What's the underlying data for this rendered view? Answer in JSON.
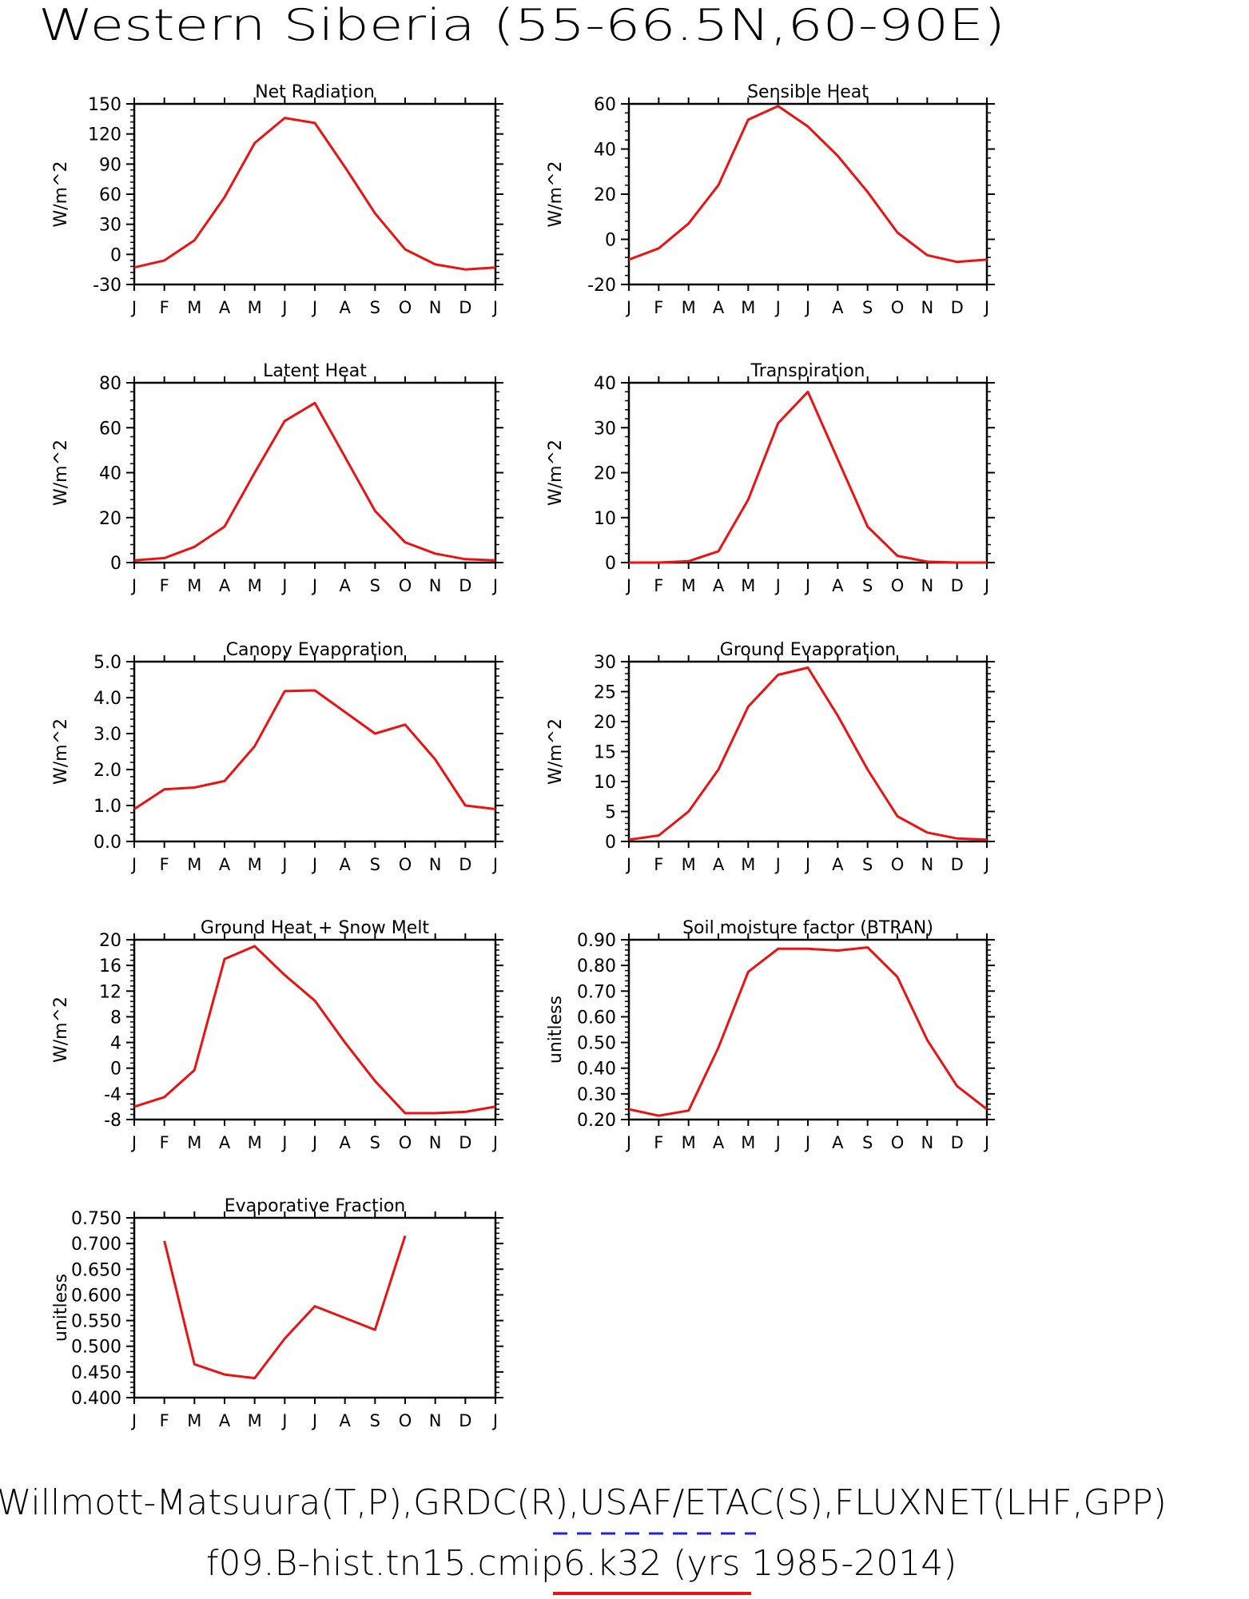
{
  "page_title": "Western Siberia (55-66.5N,60-90E)",
  "footer": {
    "line1": "Willmott-Matsuura(T,P),GRDC(R),USAF/ETAC(S),FLUXNET(LHF,GPP)",
    "line2": "f09.B-hist.tn15.cmip6.k32 (yrs 1985-2014)",
    "obs_line_color": "#2222dd",
    "model_line_color": "#ee1111"
  },
  "months": [
    "J",
    "F",
    "M",
    "A",
    "M",
    "J",
    "J",
    "A",
    "S",
    "O",
    "N",
    "D",
    "J"
  ],
  "chart_data": [
    {
      "type": "line",
      "title": "Net Radiation",
      "ylabel": "W/m^2",
      "ylim": [
        -30,
        150
      ],
      "yticks": [
        "-30",
        "0",
        "30",
        "60",
        "90",
        "120",
        "150"
      ],
      "series": [
        {
          "color": "#ee1111",
          "values": [
            -13,
            -6,
            14,
            57,
            111,
            136,
            131,
            87,
            41,
            5,
            -10,
            -15,
            -13
          ]
        }
      ]
    },
    {
      "type": "line",
      "title": "Sensible Heat",
      "ylabel": "W/m^2",
      "ylim": [
        -20,
        60
      ],
      "yticks": [
        "-20",
        "0",
        "20",
        "40",
        "60"
      ],
      "series": [
        {
          "color": "#ee1111",
          "values": [
            -9,
            -4,
            7,
            24,
            53,
            59,
            50,
            37,
            21,
            3,
            -7,
            -10,
            -9
          ]
        }
      ]
    },
    {
      "type": "line",
      "title": "Latent Heat",
      "ylabel": "W/m^2",
      "ylim": [
        0,
        80
      ],
      "yticks": [
        "0",
        "20",
        "40",
        "60",
        "80"
      ],
      "series": [
        {
          "color": "#ee1111",
          "values": [
            1,
            2,
            7,
            16,
            40,
            63,
            71,
            47,
            23,
            9,
            4,
            1.5,
            1
          ]
        }
      ]
    },
    {
      "type": "line",
      "title": "Transpiration",
      "ylabel": "W/m^2",
      "ylim": [
        0,
        40
      ],
      "yticks": [
        "0",
        "10",
        "20",
        "30",
        "40"
      ],
      "series": [
        {
          "color": "#ee1111",
          "values": [
            0,
            0,
            0.3,
            2.5,
            14,
            31,
            38,
            23,
            8,
            1.5,
            0.2,
            0,
            0
          ]
        }
      ]
    },
    {
      "type": "line",
      "title": "Canopy Evaporation",
      "ylabel": "W/m^2",
      "ylim": [
        0,
        5
      ],
      "yticks": [
        "0.0",
        "1.0",
        "2.0",
        "3.0",
        "4.0",
        "5.0"
      ],
      "series": [
        {
          "color": "#ee1111",
          "values": [
            0.9,
            1.45,
            1.5,
            1.68,
            2.65,
            4.18,
            4.2,
            3.6,
            3.0,
            3.25,
            2.28,
            1.0,
            0.9
          ]
        }
      ]
    },
    {
      "type": "line",
      "title": "Ground Evaporation",
      "ylabel": "W/m^2",
      "ylim": [
        0,
        30
      ],
      "yticks": [
        "0",
        "5",
        "10",
        "15",
        "20",
        "25",
        "30"
      ],
      "series": [
        {
          "color": "#ee1111",
          "values": [
            0.3,
            1,
            5,
            12,
            22.5,
            27.8,
            29,
            21,
            12,
            4.2,
            1.5,
            0.5,
            0.3
          ]
        }
      ]
    },
    {
      "type": "line",
      "title": "Ground Heat + Snow Melt",
      "ylabel": "W/m^2",
      "ylim": [
        -8,
        20
      ],
      "yticks": [
        "-8",
        "-4",
        "0",
        "4",
        "8",
        "12",
        "16",
        "20"
      ],
      "series": [
        {
          "color": "#ee1111",
          "values": [
            -6,
            -4.5,
            -0.3,
            17,
            19,
            14.5,
            10.5,
            4,
            -2,
            -7,
            -7,
            -6.8,
            -6
          ]
        }
      ]
    },
    {
      "type": "line",
      "title": "Soil moisture factor (BTRAN)",
      "ylabel": "unitless",
      "ylim": [
        0.2,
        0.9
      ],
      "yticks": [
        "0.20",
        "0.30",
        "0.40",
        "0.50",
        "0.60",
        "0.70",
        "0.80",
        "0.90"
      ],
      "series": [
        {
          "color": "#ee1111",
          "values": [
            0.24,
            0.215,
            0.235,
            0.48,
            0.775,
            0.865,
            0.865,
            0.858,
            0.87,
            0.755,
            0.51,
            0.33,
            0.24
          ]
        }
      ]
    },
    {
      "type": "line",
      "title": "Evaporative Fraction",
      "ylabel": "unitless",
      "ylim": [
        0.4,
        0.75
      ],
      "yticks": [
        "0.400",
        "0.450",
        "0.500",
        "0.550",
        "0.600",
        "0.650",
        "0.700",
        "0.750"
      ],
      "series": [
        {
          "color": "#ee1111",
          "values": [
            null,
            0.705,
            0.465,
            0.445,
            0.438,
            0.515,
            0.578,
            0.555,
            0.532,
            0.715,
            null,
            null,
            null
          ]
        }
      ]
    }
  ]
}
